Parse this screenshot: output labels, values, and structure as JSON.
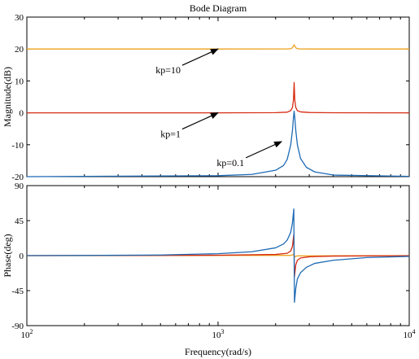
{
  "chart_data": {
    "type": "line",
    "title": "Bode Diagram",
    "xlabel": "Frequency(rad/s)",
    "xscale": "log",
    "xlim": [
      100,
      10000
    ],
    "xticks": [
      {
        "value": 100,
        "base": "10",
        "exp": "2"
      },
      {
        "value": 1000,
        "base": "10",
        "exp": "3"
      },
      {
        "value": 10000,
        "base": "10",
        "exp": "4"
      }
    ],
    "grid": false,
    "panels": [
      {
        "id": "magnitude",
        "ylabel": "Magnitude(dB)",
        "ylim": [
          -20,
          30
        ],
        "yticks": [
          "30",
          "20",
          "10",
          "0",
          "-10",
          "-20"
        ],
        "series": [
          {
            "name": "kp=10",
            "color": "#EDA21F",
            "x": [
              100,
              1000,
              2300,
              2400,
              2450,
              2500,
              2550,
              2600,
              2700,
              3000,
              10000
            ],
            "y": [
              20,
              20,
              20.02,
              20.1,
              20.4,
              21.3,
              20.4,
              20.1,
              20.02,
              20,
              20
            ]
          },
          {
            "name": "kp=1",
            "color": "#D62B12",
            "x": [
              100,
              1000,
              2000,
              2300,
              2400,
              2450,
              2480,
              2500,
              2520,
              2550,
              2600,
              2700,
              3000,
              4000,
              10000
            ],
            "y": [
              0,
              0,
              0.05,
              0.2,
              0.7,
              1.7,
              4.0,
              9.5,
              4.0,
              1.7,
              0.7,
              0.3,
              0.1,
              0.02,
              0
            ]
          },
          {
            "name": "kp=0.1",
            "color": "#1F6BB5",
            "x": [
              100,
              1000,
              1500,
              2000,
              2200,
              2300,
              2400,
              2450,
              2480,
              2500,
              2520,
              2550,
              2600,
              2700,
              2900,
              3200,
              4000,
              10000
            ],
            "y": [
              -20,
              -19.7,
              -19.3,
              -18,
              -16.5,
              -14.6,
              -10,
              -5.5,
              -1.5,
              0.5,
              -1.5,
              -5.5,
              -10,
              -14.3,
              -17.1,
              -18.5,
              -19.5,
              -19.9
            ]
          }
        ],
        "annotations": [
          {
            "text": "kp=10",
            "target": [
              1000,
              20
            ]
          },
          {
            "text": "kp=1",
            "target": [
              1000,
              0
            ]
          },
          {
            "text": "kp=0.1",
            "target": [
              2150,
              -9
            ]
          }
        ]
      },
      {
        "id": "phase",
        "ylabel": "Phase(deg)",
        "ylim": [
          -90,
          90
        ],
        "yticks": [
          "90",
          "45",
          "0",
          "-45",
          "-90"
        ],
        "series": [
          {
            "name": "kp=10",
            "color": "#EDA21F",
            "x": [
              100,
              2400,
              2480,
              2500,
              2520,
              2600,
              10000
            ],
            "y": [
              0,
              0.3,
              1.5,
              0,
              -1.5,
              -0.3,
              0
            ]
          },
          {
            "name": "kp=1",
            "color": "#D62B12",
            "x": [
              100,
              1000,
              2000,
              2300,
              2400,
              2450,
              2490,
              2500,
              2510,
              2550,
              2600,
              2700,
              3000,
              4000,
              10000
            ],
            "y": [
              0,
              0.5,
              1.5,
              3,
              6,
              12,
              27,
              0,
              -27,
              -12,
              -6,
              -3,
              -1.5,
              -0.6,
              -0.1
            ]
          },
          {
            "name": "kp=0.1",
            "color": "#1F6BB5",
            "x": [
              100,
              200,
              500,
              1000,
              1500,
              2000,
              2200,
              2300,
              2400,
              2450,
              2490,
              2500,
              2510,
              2550,
              2600,
              2700,
              2900,
              3200,
              4000,
              6000,
              10000
            ],
            "y": [
              0,
              0.2,
              0.8,
              2.5,
              5,
              10,
              15,
              20,
              30,
              42,
              60,
              0,
              -60,
              -42,
              -30,
              -22,
              -15,
              -10,
              -6,
              -2.5,
              -1
            ]
          }
        ]
      }
    ]
  }
}
